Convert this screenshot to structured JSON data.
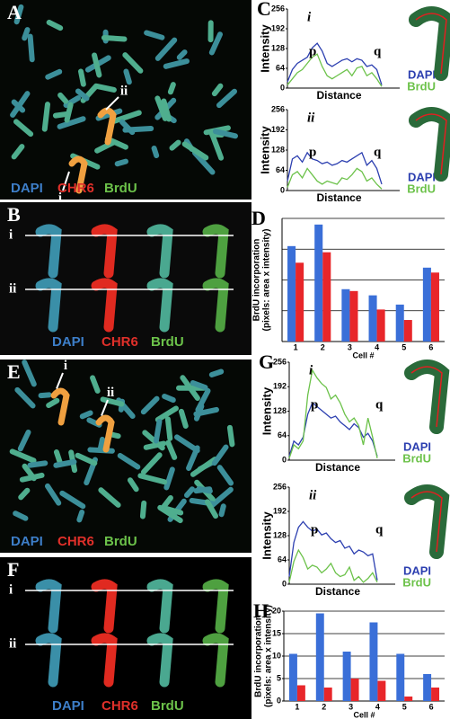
{
  "micrographs": {
    "A": {
      "panel": "A",
      "arrows": [
        "ii",
        "i"
      ],
      "stains": [
        "DAPI",
        "CHR6",
        "BrdU"
      ]
    },
    "B": {
      "panel": "B",
      "rows": [
        "i",
        "ii"
      ],
      "stains": [
        "DAPI",
        "CHR6",
        "BrdU"
      ]
    },
    "E": {
      "panel": "E",
      "arrows": [
        "i",
        "ii"
      ],
      "stains": [
        "DAPI",
        "CHR6",
        "BrdU"
      ]
    },
    "F": {
      "panel": "F",
      "rows": [
        "i",
        "ii"
      ],
      "stains": [
        "DAPI",
        "CHR6",
        "BrdU"
      ]
    }
  },
  "chart_data": [
    {
      "type": "line",
      "panel": "C",
      "subtitle": "i",
      "xlabel": "Distance",
      "ylabel": "Intensity",
      "annotations": [
        "p",
        "q"
      ],
      "x": [
        0,
        1,
        2,
        3,
        4,
        5,
        6,
        7,
        8,
        9,
        10,
        11,
        12,
        13,
        14,
        15,
        16,
        17,
        18,
        19
      ],
      "xlim": [
        0,
        19
      ],
      "ylim": [
        0,
        256
      ],
      "yticks": [
        0,
        64,
        128,
        192,
        256
      ],
      "series": [
        {
          "name": "DAPI",
          "color": "#2c3fb0",
          "values": [
            20,
            60,
            80,
            90,
            100,
            130,
            145,
            120,
            80,
            70,
            80,
            90,
            95,
            85,
            95,
            90,
            70,
            75,
            60,
            10
          ]
        },
        {
          "name": "BrdU",
          "color": "#6cc24a",
          "values": [
            10,
            30,
            50,
            60,
            80,
            100,
            110,
            70,
            40,
            30,
            40,
            50,
            60,
            40,
            65,
            70,
            40,
            50,
            30,
            5
          ]
        }
      ]
    },
    {
      "type": "line",
      "subtitle": "ii",
      "xlabel": "Distance",
      "ylabel": "Intensity",
      "annotations": [
        "p",
        "q"
      ],
      "x": [
        0,
        1,
        2,
        3,
        4,
        5,
        6,
        7,
        8,
        9,
        10,
        11,
        12,
        13,
        14,
        15,
        16,
        17,
        18,
        19
      ],
      "xlim": [
        0,
        19
      ],
      "ylim": [
        0,
        256
      ],
      "yticks": [
        0,
        64,
        128,
        192,
        256
      ],
      "series": [
        {
          "name": "DAPI",
          "color": "#2c3fb0",
          "values": [
            30,
            100,
            110,
            90,
            120,
            100,
            95,
            85,
            90,
            80,
            85,
            95,
            90,
            100,
            110,
            120,
            80,
            95,
            70,
            20
          ]
        },
        {
          "name": "BrdU",
          "color": "#6cc24a",
          "values": [
            10,
            50,
            60,
            40,
            70,
            50,
            30,
            20,
            30,
            25,
            20,
            40,
            35,
            50,
            70,
            60,
            30,
            40,
            20,
            5
          ]
        }
      ]
    },
    {
      "type": "bar",
      "panel": "D",
      "ylabel": [
        "BrdU incorporation",
        "(pixels: area x intensity)"
      ],
      "xlabel": "Cell #",
      "categories": [
        "1",
        "2",
        "3",
        "4",
        "5",
        "6"
      ],
      "ylim": [
        0,
        20
      ],
      "gridlines": [
        5,
        10,
        15,
        20
      ],
      "series": [
        {
          "color": "#3a6fd8",
          "values": [
            15.5,
            19,
            8.5,
            7.5,
            6,
            12
          ]
        },
        {
          "color": "#e8262a",
          "values": [
            12.8,
            14.5,
            8.2,
            5.2,
            3.5,
            11.2
          ]
        }
      ]
    },
    {
      "type": "line",
      "panel": "G",
      "subtitle": "i",
      "xlabel": "Distance",
      "ylabel": "Intensity",
      "annotations": [
        "p",
        "q"
      ],
      "x": [
        0,
        1,
        2,
        3,
        4,
        5,
        6,
        7,
        8,
        9,
        10,
        11,
        12,
        13,
        14,
        15,
        16,
        17,
        18,
        19
      ],
      "xlim": [
        0,
        19
      ],
      "ylim": [
        0,
        256
      ],
      "yticks": [
        0,
        64,
        128,
        192,
        256
      ],
      "series": [
        {
          "name": "DAPI",
          "color": "#2c3fb0",
          "values": [
            10,
            50,
            40,
            60,
            120,
            150,
            140,
            130,
            120,
            110,
            115,
            100,
            90,
            80,
            95,
            85,
            60,
            70,
            50,
            10
          ]
        },
        {
          "name": "BrdU",
          "color": "#6cc24a",
          "values": [
            5,
            40,
            30,
            50,
            170,
            235,
            215,
            200,
            190,
            160,
            170,
            150,
            120,
            100,
            110,
            90,
            40,
            110,
            60,
            5
          ]
        }
      ]
    },
    {
      "type": "line",
      "subtitle": "ii",
      "xlabel": "Distance",
      "ylabel": "Intensity",
      "annotations": [
        "p",
        "q"
      ],
      "x": [
        0,
        1,
        2,
        3,
        4,
        5,
        6,
        7,
        8,
        9,
        10,
        11,
        12,
        13,
        14,
        15,
        16,
        17,
        18,
        19
      ],
      "xlim": [
        0,
        19
      ],
      "ylim": [
        0,
        256
      ],
      "yticks": [
        0,
        64,
        128,
        192,
        256
      ],
      "series": [
        {
          "name": "DAPI",
          "color": "#2c3fb0",
          "values": [
            20,
            110,
            150,
            165,
            150,
            140,
            145,
            130,
            135,
            120,
            110,
            115,
            95,
            100,
            80,
            90,
            85,
            75,
            80,
            10
          ]
        },
        {
          "name": "BrdU",
          "color": "#6cc24a",
          "values": [
            5,
            60,
            90,
            70,
            40,
            50,
            45,
            30,
            40,
            55,
            30,
            20,
            25,
            45,
            10,
            20,
            5,
            15,
            30,
            5
          ]
        }
      ]
    },
    {
      "type": "bar",
      "panel": "H",
      "ylabel": [
        "BrdU incorporation",
        "(pixels: area x intensity)"
      ],
      "xlabel": "Cell #",
      "categories": [
        "1",
        "2",
        "3",
        "4",
        "5",
        "6"
      ],
      "ylim": [
        0,
        20
      ],
      "yticks": [
        0,
        5,
        10,
        15,
        20
      ],
      "series": [
        {
          "color": "#3a6fd8",
          "values": [
            10.5,
            19.5,
            11,
            17.5,
            10.5,
            6
          ]
        },
        {
          "color": "#e8262a",
          "values": [
            3.5,
            3,
            5,
            4.5,
            1,
            3
          ]
        }
      ]
    }
  ]
}
